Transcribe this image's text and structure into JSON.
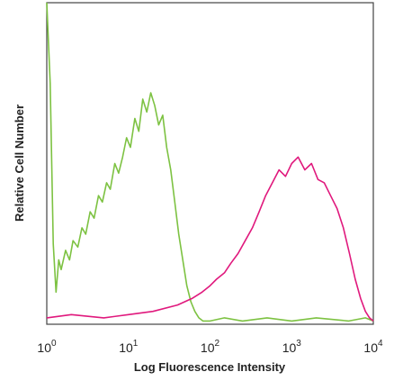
{
  "chart_data": {
    "type": "line",
    "title": "",
    "xlabel": "Log Fluorescence Intensity",
    "ylabel": "Relative Cell Number",
    "x_scale": "log",
    "xlim": [
      1,
      10000
    ],
    "ylim": [
      0,
      100
    ],
    "grid": false,
    "legend": "none",
    "x_ticks": [
      {
        "base": "10",
        "exp": "0"
      },
      {
        "base": "10",
        "exp": "1"
      },
      {
        "base": "10",
        "exp": "2"
      },
      {
        "base": "10",
        "exp": "3"
      },
      {
        "base": "10",
        "exp": "4"
      }
    ],
    "series": [
      {
        "color": "#7dc242",
        "x": [
          1,
          1.1,
          1.2,
          1.3,
          1.4,
          1.5,
          1.7,
          1.9,
          2.1,
          2.4,
          2.7,
          3,
          3.4,
          3.8,
          4.3,
          4.8,
          5.4,
          6,
          6.8,
          7.6,
          8.5,
          9.5,
          10.6,
          12,
          13.4,
          15,
          16.8,
          18.8,
          21,
          23.5,
          26.3,
          29.4,
          33,
          37,
          41.4,
          46.4,
          52,
          58.2,
          65.2,
          73,
          81.8,
          100,
          150,
          250,
          500,
          1000,
          2000,
          5000,
          8000,
          10000
        ],
        "y": [
          100,
          75,
          25,
          10,
          20,
          17,
          23,
          20,
          26,
          24,
          30,
          28,
          35,
          33,
          40,
          38,
          44,
          42,
          50,
          47,
          52,
          58,
          55,
          64,
          60,
          70,
          66,
          72,
          68,
          62,
          65,
          55,
          48,
          38,
          28,
          20,
          12,
          7,
          4,
          2,
          1,
          1,
          2,
          1,
          2,
          1,
          2,
          1,
          2,
          1
        ]
      },
      {
        "color": "#e0197d",
        "x": [
          1,
          2,
          5,
          10,
          20,
          40,
          60,
          80,
          100,
          120,
          150,
          180,
          220,
          270,
          330,
          400,
          480,
          580,
          700,
          840,
          1000,
          1200,
          1450,
          1750,
          2100,
          2500,
          3000,
          3600,
          4300,
          5100,
          6000,
          7000,
          8000,
          9000,
          10000
        ],
        "y": [
          2,
          3,
          2,
          3,
          4,
          6,
          8,
          10,
          12,
          14,
          16,
          19,
          22,
          26,
          30,
          35,
          40,
          44,
          48,
          46,
          50,
          52,
          48,
          50,
          45,
          44,
          40,
          36,
          30,
          22,
          14,
          8,
          4,
          2,
          1
        ]
      }
    ]
  }
}
